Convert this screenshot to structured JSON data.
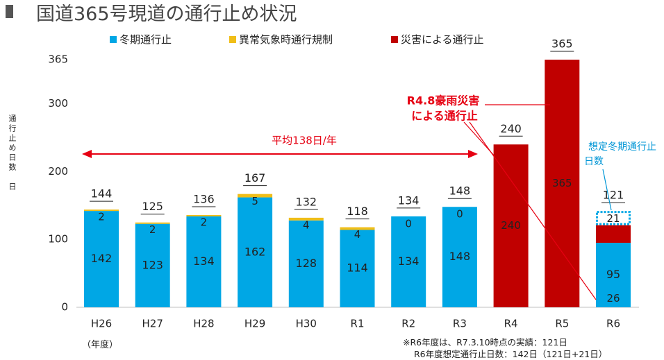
{
  "page": {
    "title": "国道365号現道の通行止め状況",
    "notes": [
      "※R6年度は、R7.3.10時点の実績：121日",
      "R6年度想定通行止日数：142日（121日+21日）"
    ]
  },
  "chart_data": {
    "type": "bar",
    "stacked": true,
    "title": "",
    "ylabel": "通行止め日数　日",
    "xunit": "（年度）",
    "ylim": [
      0,
      365
    ],
    "yticks": [
      0,
      100,
      200,
      300,
      365
    ],
    "grid": false,
    "legend_position": "top",
    "categories": [
      "H26",
      "H27",
      "H28",
      "H29",
      "H30",
      "R1",
      "R2",
      "R3",
      "R4",
      "R5",
      "R6"
    ],
    "series": [
      {
        "name": "冬期通行止",
        "color": "#00A7E5",
        "values": [
          142,
          123,
          134,
          162,
          128,
          114,
          134,
          148,
          0,
          0,
          95
        ],
        "labels": [
          "142",
          "123",
          "134",
          "162",
          "128",
          "114",
          "134",
          "148",
          "",
          "",
          "95"
        ]
      },
      {
        "name": "異常気象時通行規制",
        "color": "#F0BE18",
        "values": [
          2,
          2,
          2,
          5,
          4,
          4,
          0,
          0,
          0,
          0,
          0
        ],
        "labels": [
          "2",
          "2",
          "2",
          "5",
          "4",
          "4",
          "0",
          "0",
          "",
          "",
          ""
        ]
      },
      {
        "name": "災害による通行止",
        "color": "#C00000",
        "values": [
          0,
          0,
          0,
          0,
          0,
          0,
          0,
          0,
          240,
          365,
          26
        ],
        "labels": [
          "",
          "",
          "",
          "",
          "",
          "",
          "",
          "",
          "240",
          "365",
          "26"
        ]
      }
    ],
    "totals": [
      "144",
      "125",
      "136",
      "167",
      "132",
      "118",
      "134",
      "148",
      "240",
      "365",
      "121"
    ],
    "projected": {
      "category": "R6",
      "value": 21,
      "label": "21",
      "annotation": [
        "想定冬期通行止",
        "日数"
      ],
      "color": "#00A7E5"
    },
    "annotations": {
      "average": {
        "text": "平均138日/年",
        "value": 138,
        "color": "#E60012"
      },
      "disaster": {
        "lines": [
          "R4.8豪雨災害",
          "による通行止"
        ],
        "color": "#E60012"
      }
    }
  }
}
